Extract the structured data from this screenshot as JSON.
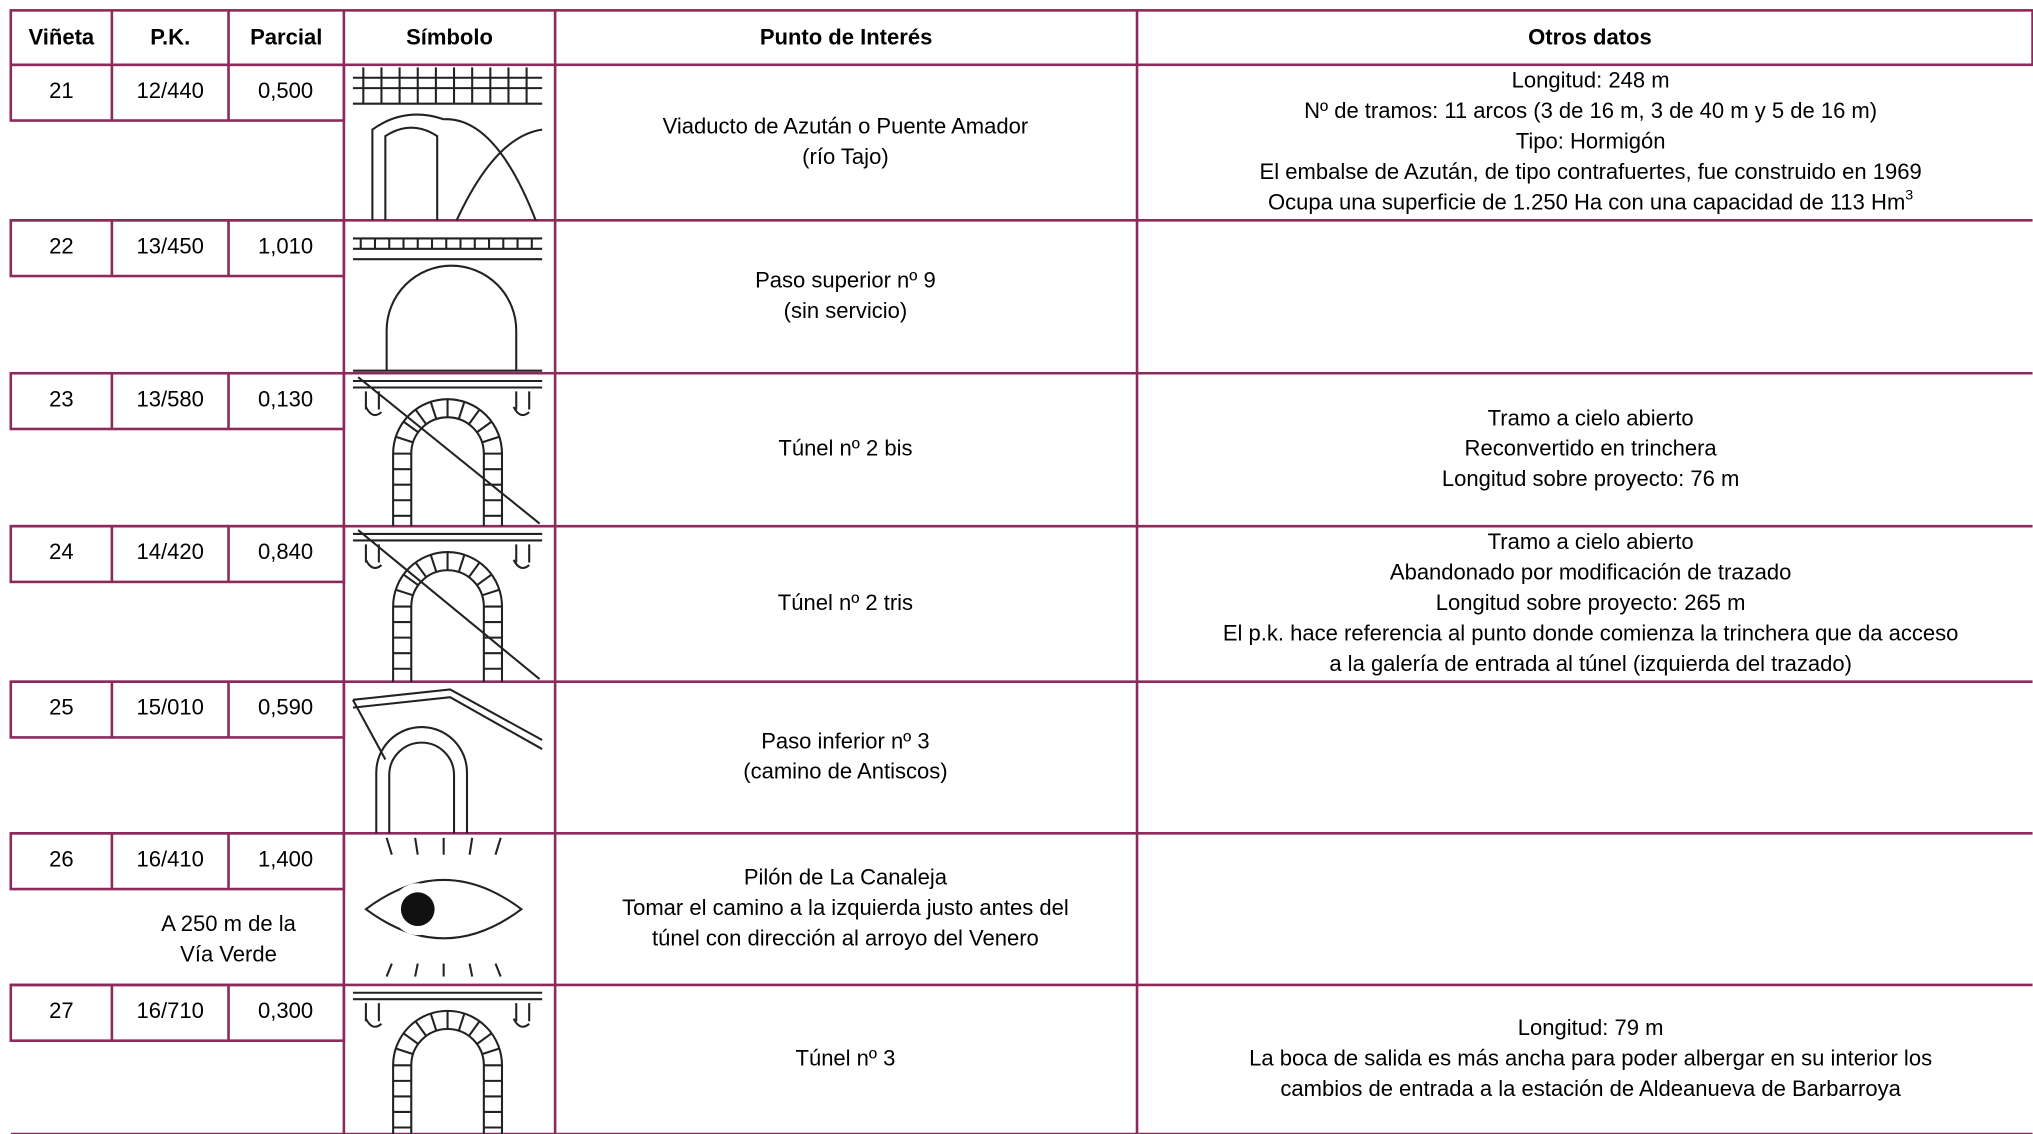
{
  "header": [
    "Viñeta",
    "P.K.",
    "Parcial",
    "Símbolo",
    "Punto de Interés",
    "Otros datos"
  ],
  "rows": [
    {
      "vineta": "21",
      "pk": "12/440",
      "parcial": "0,500",
      "punto": [
        {
          "text": "Viaducto de Azután o Puente Amador",
          "color": "#000000"
        },
        {
          "text": "(río Tajo)",
          "color": "#000000"
        }
      ],
      "otros": [
        {
          "text": "Longitud: 248 m",
          "color": "#000000"
        },
        {
          "text": "Nº de tramos: 11 arcos (3 de 16 m, 3 de 40 m y 5 de 16 m)",
          "color": "#000000"
        },
        {
          "text": "Tipo: Hormigón",
          "color": "#000000"
        },
        {
          "text": "El embalse de Azután, de tipo contrafuertes, fue construido en 1969",
          "color": "#1a7a1a"
        },
        {
          "text": "Ocupa una superficie de 1.250 Ha con una capacidad de 113 Hm",
          "sup": "3",
          "color": "#1a7a1a"
        }
      ]
    },
    {
      "vineta": "22",
      "pk": "13/450",
      "parcial": "1,010",
      "punto": [
        {
          "text": "Paso superior nº 9",
          "color": "#000000"
        },
        {
          "text": "(sin servicio)",
          "color": "#000000"
        }
      ],
      "otros": []
    },
    {
      "vineta": "23",
      "pk": "13/580",
      "parcial": "0,130",
      "punto": [
        {
          "text": "Túnel nº 2 bis",
          "color": "#000000"
        }
      ],
      "otros": [
        {
          "text": "Tramo a cielo abierto",
          "color": "#000000"
        },
        {
          "text": "Reconvertido en trinchera",
          "color": "#000000"
        },
        {
          "text": "Longitud sobre proyecto: 76 m",
          "color": "#000000"
        }
      ]
    },
    {
      "vineta": "24",
      "pk": "14/420",
      "parcial": "0,840",
      "punto": [
        {
          "text": "Túnel nº 2 tris",
          "color": "#000000"
        }
      ],
      "otros": [
        {
          "text": "Tramo a cielo abierto",
          "color": "#000000"
        },
        {
          "text": "Abandonado por modificación de trazado",
          "color": "#000000"
        },
        {
          "text": "Longitud sobre proyecto: 265 m",
          "color": "#000000"
        },
        {
          "text": "El p.k. hace referencia al punto donde comienza la trinchera que da acceso",
          "color": "#000000"
        },
        {
          "text": "a la galería de entrada al túnel (izquierda del trazado)",
          "color": "#000000"
        }
      ]
    },
    {
      "vineta": "25",
      "pk": "15/010",
      "parcial": "0,590",
      "punto": [
        {
          "text": "Paso inferior nº 3",
          "color": "#000000"
        },
        {
          "text": "(camino de Antiscos)",
          "color": "#000000"
        }
      ],
      "otros": []
    },
    {
      "vineta": "26",
      "pk": "16/410",
      "parcial": "1,400",
      "note": [
        "A 250 m de la",
        "Vía Verde"
      ],
      "punto": [
        {
          "text": "Pilón de La Canaleja",
          "color": "#e020e0"
        },
        {
          "text": "Tomar el camino a la izquierda justo antes del",
          "color": "#1a1ae0"
        },
        {
          "text": "túnel con dirección al arroyo del Venero",
          "color": "#1a1ae0"
        }
      ],
      "otros": []
    },
    {
      "vineta": "27",
      "pk": "16/710",
      "parcial": "0,300",
      "punto": [
        {
          "text": "Túnel nº 3",
          "color": "#000000"
        }
      ],
      "otros": [
        {
          "text": "Longitud: 79 m",
          "color": "#000000"
        },
        {
          "text": "La boca de salida es más ancha para poder albergar en su interior los",
          "color": "#000000"
        },
        {
          "text": "cambios de entrada a la estación de Aldeanueva de Barbarroya",
          "color": "#000000"
        }
      ]
    }
  ]
}
